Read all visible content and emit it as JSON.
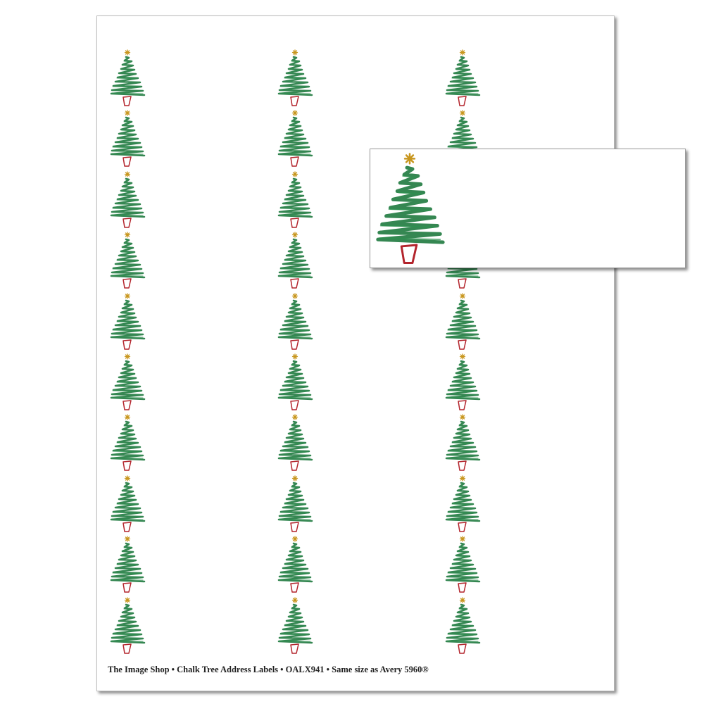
{
  "sheet": {
    "columns": 3,
    "rows": 10,
    "footer": "The Image Shop • Chalk Tree Address Labels • OALX941 • Same size as Avery 5960®"
  },
  "design": {
    "icon": "chalk-christmas-tree-icon",
    "colors": {
      "tree": "#1f7a3f",
      "star": "#c8961e",
      "pot": "#b3242c"
    }
  }
}
